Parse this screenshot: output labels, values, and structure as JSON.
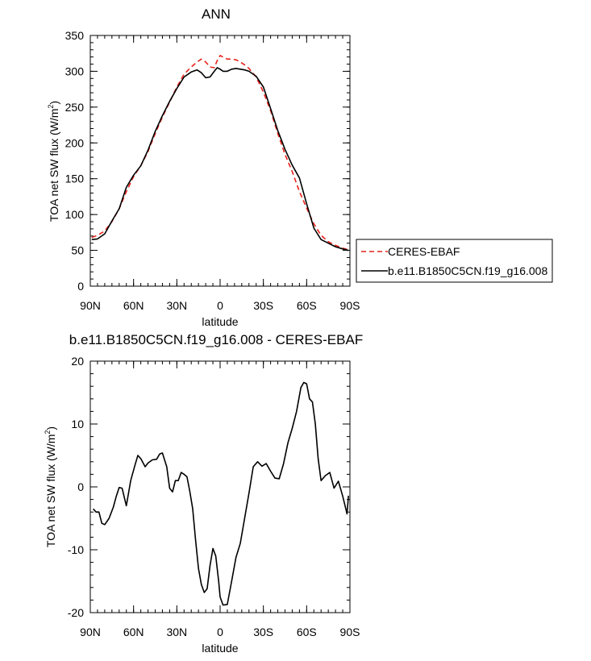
{
  "chart_data": [
    {
      "type": "line",
      "title": "ANN",
      "xlabel": "latitude",
      "ylabel": "TOA net SW flux (W/m",
      "ylabel_sup": "2",
      "ylabel_close": ")",
      "xlim": [
        90,
        -90
      ],
      "ylim": [
        0,
        350
      ],
      "xticks": [
        {
          "value": 90,
          "label": "90N"
        },
        {
          "value": 60,
          "label": "60N"
        },
        {
          "value": 30,
          "label": "30N"
        },
        {
          "value": 0,
          "label": "0"
        },
        {
          "value": -30,
          "label": "30S"
        },
        {
          "value": -60,
          "label": "60S"
        },
        {
          "value": -90,
          "label": "90S"
        }
      ],
      "yticks": [
        0,
        50,
        100,
        150,
        200,
        250,
        300,
        350
      ],
      "legend_position": "right",
      "series": [
        {
          "name": "CERES-EBAF",
          "color": "#e8221a",
          "dash": "dashed",
          "x": [
            89,
            85,
            80,
            75,
            70,
            65,
            60,
            55,
            50,
            45,
            40,
            35,
            30,
            25,
            20,
            16,
            13,
            10,
            7,
            4,
            2,
            0,
            -2,
            -5,
            -8,
            -11,
            -14,
            -17,
            -20,
            -25,
            -30,
            -35,
            -40,
            -45,
            -50,
            -55,
            -60,
            -65,
            -70,
            -75,
            -80,
            -85,
            -89
          ],
          "y": [
            68,
            71,
            77,
            90,
            108,
            132,
            153,
            168,
            188,
            213,
            236,
            257,
            278,
            296,
            306,
            313,
            317,
            313,
            306,
            305,
            315,
            322,
            320,
            317,
            317,
            316,
            313,
            309,
            304,
            292,
            271,
            245,
            213,
            184,
            160,
            132,
            109,
            87,
            71,
            62,
            57,
            53,
            51
          ]
        },
        {
          "name": "b.e11.B1850C5CN.f19_g16.008",
          "color": "#000000",
          "dash": "solid",
          "x": [
            89,
            85,
            80,
            75,
            70,
            65,
            60,
            55,
            50,
            45,
            40,
            35,
            30,
            25,
            20,
            16,
            13,
            10,
            7,
            4,
            2,
            0,
            -2,
            -5,
            -8,
            -11,
            -14,
            -17,
            -20,
            -25,
            -30,
            -35,
            -40,
            -45,
            -50,
            -55,
            -60,
            -65,
            -70,
            -75,
            -80,
            -85,
            -89
          ],
          "y": [
            65,
            66,
            73,
            91,
            108,
            138,
            155,
            168,
            190,
            216,
            238,
            258,
            276,
            292,
            299,
            302,
            298,
            291,
            292,
            300,
            305,
            303,
            300,
            300,
            303,
            304,
            303,
            302,
            300,
            293,
            278,
            248,
            217,
            191,
            169,
            151,
            115,
            81,
            65,
            60,
            55,
            52,
            50
          ]
        }
      ]
    },
    {
      "type": "line",
      "title": "b.e11.B1850C5CN.f19_g16.008 - CERES-EBAF",
      "xlabel": "latitude",
      "ylabel": "TOA net SW flux (W/m",
      "ylabel_sup": "2",
      "ylabel_close": ")",
      "xlim": [
        90,
        -90
      ],
      "ylim": [
        -20,
        20
      ],
      "xticks": [
        {
          "value": 90,
          "label": "90N"
        },
        {
          "value": 60,
          "label": "60N"
        },
        {
          "value": 30,
          "label": "30N"
        },
        {
          "value": 0,
          "label": "0"
        },
        {
          "value": -30,
          "label": "30S"
        },
        {
          "value": -60,
          "label": "60S"
        },
        {
          "value": -90,
          "label": "90S"
        }
      ],
      "yticks": [
        -20,
        -10,
        0,
        10,
        20
      ],
      "series": [
        {
          "color": "#000000",
          "dash": "solid",
          "x": [
            88,
            86,
            84,
            82,
            80,
            77,
            74,
            72,
            70,
            68,
            65,
            62,
            59,
            57,
            55,
            52,
            50,
            47,
            44,
            42,
            40,
            37,
            35,
            33,
            31,
            29,
            27,
            25,
            23,
            21,
            19,
            17,
            15,
            13,
            11,
            9,
            7,
            5,
            3,
            1,
            0,
            -2,
            -5,
            -8,
            -11,
            -14,
            -17,
            -20,
            -23,
            -26,
            -29,
            -32,
            -35,
            -38,
            -41,
            -44,
            -47,
            -50,
            -53,
            -56,
            -58,
            -60,
            -62,
            -64,
            -66,
            -68,
            -70,
            -73,
            -76,
            -79,
            -82,
            -85,
            -88,
            -89
          ],
          "y": [
            -3.5,
            -4,
            -4,
            -5.8,
            -6,
            -5,
            -3.2,
            -1.5,
            -0.1,
            -0.2,
            -3,
            1,
            3.5,
            5,
            4.5,
            3.2,
            3.8,
            4.3,
            4.4,
            5.2,
            5.4,
            3.2,
            -0.2,
            -0.8,
            1,
            1,
            2.3,
            2,
            1.6,
            -0.7,
            -3.5,
            -8.5,
            -13,
            -15.5,
            -16.8,
            -16.2,
            -12.5,
            -9.8,
            -11,
            -15,
            -17.5,
            -18.8,
            -18.7,
            -15,
            -11.2,
            -9,
            -5,
            -1,
            3.2,
            4,
            3.3,
            3.7,
            2.5,
            1.4,
            1.3,
            3.7,
            7,
            9.3,
            12,
            15.8,
            16.6,
            16.4,
            14,
            13.5,
            10,
            4.5,
            1,
            1.8,
            2.3,
            -0.2,
            0.9,
            -1.5,
            -4.3,
            -1.4
          ]
        }
      ]
    }
  ]
}
